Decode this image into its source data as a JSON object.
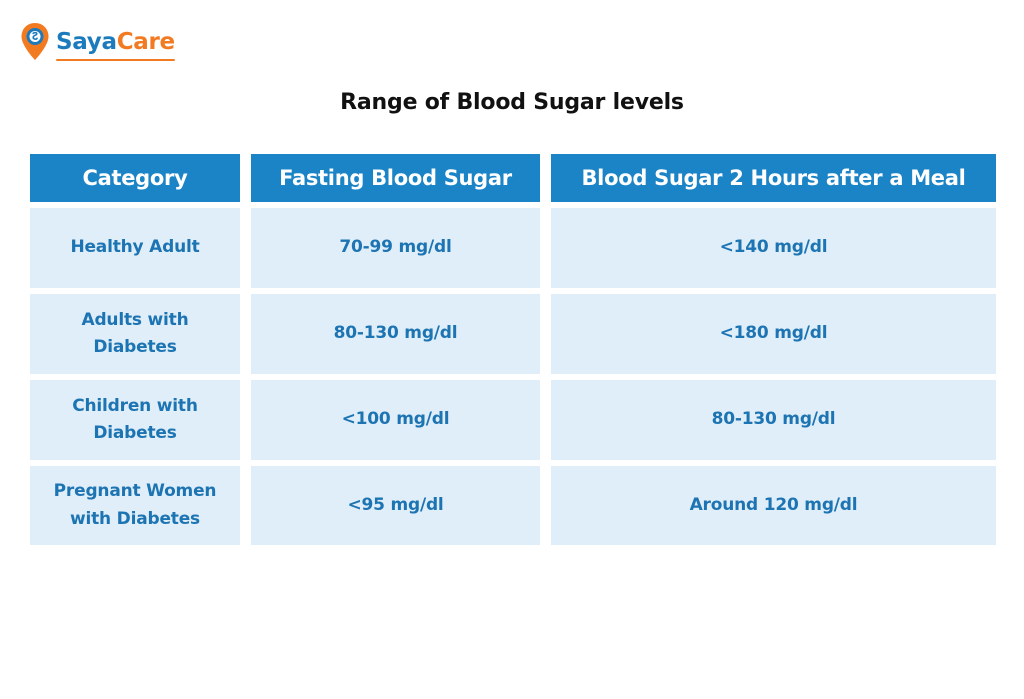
{
  "brand": {
    "name_part1": "Saya",
    "name_part2": "Care",
    "primary_color": "#1b7bbd",
    "accent_color": "#f27a21"
  },
  "title": "Range of Blood Sugar levels",
  "table": {
    "header_color": "#1b84c7",
    "cell_color": "#e0eef9",
    "columns": [
      "Category",
      "Fasting Blood Sugar",
      "Blood Sugar 2 Hours after a Meal"
    ],
    "rows": [
      {
        "category_lines": [
          "Healthy Adult"
        ],
        "fasting": "70-99 mg/dl",
        "after_meal": "<140 mg/dl"
      },
      {
        "category_lines": [
          "Adults with",
          "Diabetes"
        ],
        "fasting": "80-130 mg/dl",
        "after_meal": "<180 mg/dl"
      },
      {
        "category_lines": [
          "Children with",
          "Diabetes"
        ],
        "fasting": "<100 mg/dl",
        "after_meal": "80-130 mg/dl"
      },
      {
        "category_lines": [
          "Pregnant Women",
          "with Diabetes"
        ],
        "fasting": "<95 mg/dl",
        "after_meal": "Around 120 mg/dl"
      }
    ]
  }
}
